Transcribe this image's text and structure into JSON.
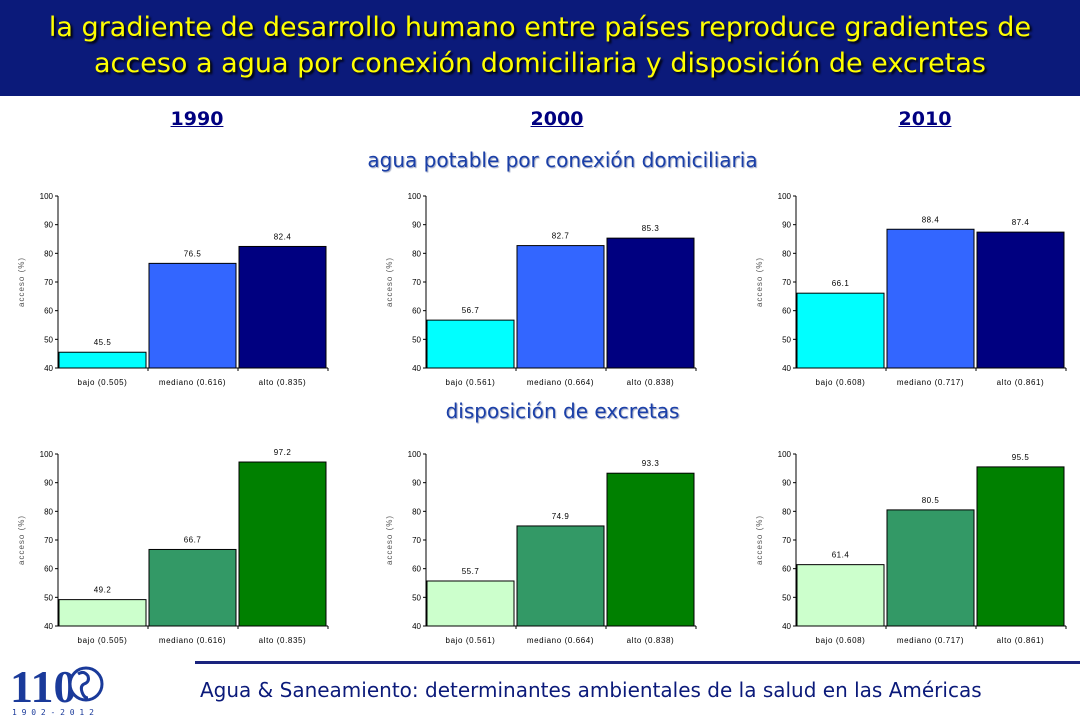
{
  "header": {
    "title_line1": "la gradiente de desarrollo humano entre países reproduce gradientes de",
    "title_line2": "acceso a agua por conexión domiciliaria y disposición de excretas"
  },
  "years": [
    "1990",
    "2000",
    "2010"
  ],
  "sections": {
    "water": "agua potable por conexión domiciliaria",
    "sanitation": "disposición de excretas"
  },
  "footer": {
    "text": "Agua & Saneamiento: determinantes ambientales de la salud en las Américas"
  },
  "logo": {
    "number": "110",
    "years": "1 9 0 2 - 2 0 1 2"
  },
  "colors": {
    "title_bg": "#0b1a7a",
    "title_text": "#ffff00",
    "water": [
      "#00ffff",
      "#3366ff",
      "#000080"
    ],
    "sanitation": [
      "#ccffcc",
      "#339966",
      "#008000"
    ]
  },
  "chart_data": [
    {
      "type": "bar",
      "section": "water",
      "year": "1990",
      "ylabel": "acceso (%)",
      "ylim": [
        40,
        100
      ],
      "categories": [
        "bajo (0.505)",
        "mediano (0.616)",
        "alto (0.835)"
      ],
      "values": [
        45.5,
        76.5,
        82.4
      ],
      "labels": [
        "45.5",
        "76.5",
        "82.4"
      ]
    },
    {
      "type": "bar",
      "section": "water",
      "year": "2000",
      "ylabel": "acceso (%)",
      "ylim": [
        40,
        100
      ],
      "categories": [
        "bajo (0.561)",
        "mediano (0.664)",
        "alto (0.838)"
      ],
      "values": [
        56.7,
        82.7,
        85.3
      ],
      "labels": [
        "56.7",
        "82.7",
        "85.3"
      ]
    },
    {
      "type": "bar",
      "section": "water",
      "year": "2010",
      "ylabel": "acceso (%)",
      "ylim": [
        40,
        100
      ],
      "categories": [
        "bajo (0.608)",
        "mediano (0.717)",
        "alto (0.861)"
      ],
      "values": [
        66.1,
        88.4,
        87.4
      ],
      "labels": [
        "66.1",
        "88.4",
        "87.4"
      ]
    },
    {
      "type": "bar",
      "section": "sanitation",
      "year": "1990",
      "ylabel": "acceso (%)",
      "ylim": [
        40,
        100
      ],
      "categories": [
        "bajo (0.505)",
        "mediano (0.616)",
        "alto (0.835)"
      ],
      "values": [
        49.2,
        66.7,
        97.2
      ],
      "labels": [
        "49.2",
        "66.7",
        "97.2"
      ]
    },
    {
      "type": "bar",
      "section": "sanitation",
      "year": "2000",
      "ylabel": "acceso (%)",
      "ylim": [
        40,
        100
      ],
      "categories": [
        "bajo (0.561)",
        "mediano (0.664)",
        "alto (0.838)"
      ],
      "values": [
        55.7,
        74.9,
        93.3
      ],
      "labels": [
        "55.7",
        "74.9",
        "93.3"
      ]
    },
    {
      "type": "bar",
      "section": "sanitation",
      "year": "2010",
      "ylabel": "acceso (%)",
      "ylim": [
        40,
        100
      ],
      "categories": [
        "bajo (0.608)",
        "mediano (0.717)",
        "alto (0.861)"
      ],
      "values": [
        61.4,
        80.5,
        95.5
      ],
      "labels": [
        "61.4",
        "80.5",
        "95.5"
      ]
    }
  ]
}
